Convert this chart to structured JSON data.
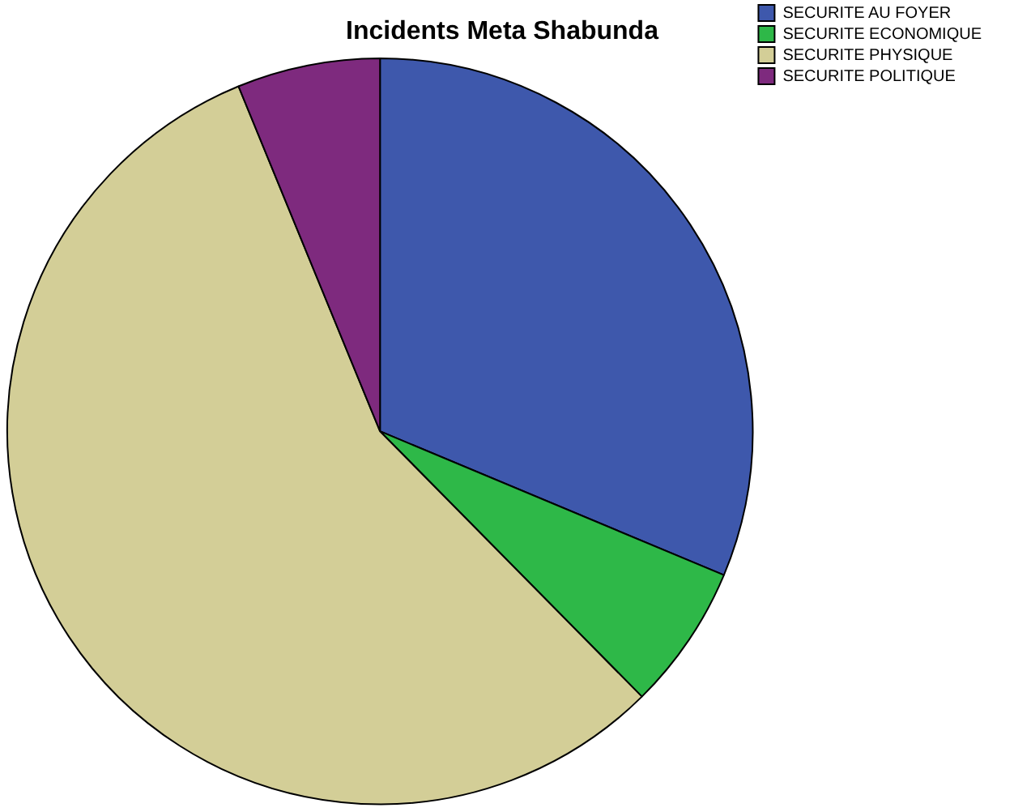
{
  "chart_data": {
    "type": "pie",
    "title": "Incidents Meta Shabunda",
    "categories": [
      "SECURITE AU FOYER",
      "SECURITE ECONOMIQUE",
      "SECURITE PHYSIQUE",
      "SECURITE POLITIQUE"
    ],
    "values": [
      31.3,
      6.3,
      56.2,
      6.2
    ],
    "colors": [
      "#3e58ac",
      "#2eb848",
      "#d3ce97",
      "#7e2a7e"
    ],
    "legend": "top right"
  }
}
